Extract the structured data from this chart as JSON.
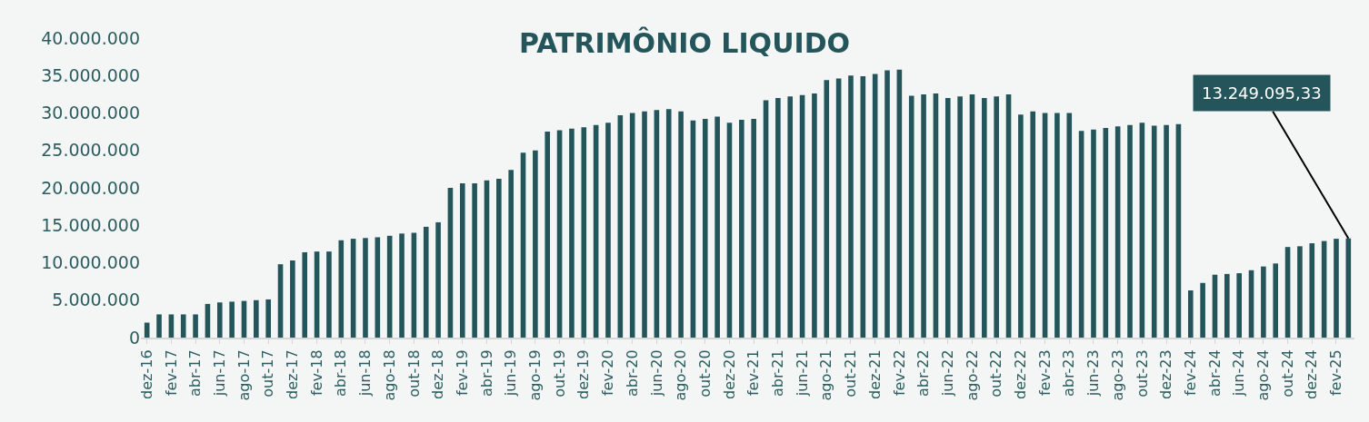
{
  "chart_data": {
    "type": "bar",
    "title": "PATRIMÔNIO LIQUIDO",
    "categories": [
      "dez-16",
      null,
      "fev-17",
      null,
      "abr-17",
      null,
      "jun-17",
      null,
      "ago-17",
      null,
      "out-17",
      null,
      "dez-17",
      null,
      "fev-18",
      null,
      "abr-18",
      null,
      "jun-18",
      null,
      "ago-18",
      null,
      "out-18",
      null,
      "dez-18",
      null,
      "fev-19",
      null,
      "abr-19",
      null,
      "jun-19",
      null,
      "ago-19",
      null,
      "out-19",
      null,
      "dez-19",
      null,
      "fev-20",
      null,
      "abr-20",
      null,
      "jun-20",
      null,
      "ago-20",
      null,
      "out-20",
      null,
      "dez-20",
      null,
      "fev-21",
      null,
      "abr-21",
      null,
      "jun-21",
      null,
      "ago-21",
      null,
      "out-21",
      null,
      "dez-21",
      null,
      "fev-22",
      null,
      "abr-22",
      null,
      "jun-22",
      null,
      "ago-22",
      null,
      "out-22",
      null,
      "dez-22",
      null,
      "fev-23",
      null,
      "abr-23",
      null,
      "jun-23",
      null,
      "ago-23",
      null,
      "out-23",
      null,
      "dez-23",
      null,
      "fev-24",
      null,
      "abr-24",
      null,
      "jun-24",
      null,
      "ago-24",
      null,
      "out-24",
      null,
      "dez-24",
      null,
      "fev-25",
      null
    ],
    "values": [
      2000000,
      3100000,
      3100000,
      3100000,
      3100000,
      4500000,
      4700000,
      4800000,
      4900000,
      5000000,
      5100000,
      9800000,
      10300000,
      11400000,
      11500000,
      11500000,
      13000000,
      13200000,
      13300000,
      13400000,
      13600000,
      13900000,
      14000000,
      14800000,
      15400000,
      20000000,
      20600000,
      20600000,
      21000000,
      21200000,
      22400000,
      24700000,
      25000000,
      27500000,
      27700000,
      27900000,
      28100000,
      28400000,
      28700000,
      29700000,
      30000000,
      30200000,
      30400000,
      30500000,
      30200000,
      29000000,
      29200000,
      29500000,
      28700000,
      29100000,
      29200000,
      31700000,
      32000000,
      32200000,
      32400000,
      32600000,
      34400000,
      34600000,
      35000000,
      34900000,
      35200000,
      35700000,
      35800000,
      32300000,
      32500000,
      32600000,
      32000000,
      32200000,
      32500000,
      32000000,
      32200000,
      32500000,
      29800000,
      30200000,
      30000000,
      30000000,
      30000000,
      27600000,
      27800000,
      28000000,
      28200000,
      28400000,
      28700000,
      28300000,
      28400000,
      28500000,
      6300000,
      7300000,
      8400000,
      8500000,
      8600000,
      9000000,
      9500000,
      9900000,
      12100000,
      12200000,
      12600000,
      12900000,
      13200000,
      13249095.33
    ],
    "color": "#24555a",
    "ylim": [
      0,
      40000000
    ],
    "yticks": [
      {
        "value": 0,
        "label": "0"
      },
      {
        "value": 5000000,
        "label": "5.000.000"
      },
      {
        "value": 10000000,
        "label": "10.000.000"
      },
      {
        "value": 15000000,
        "label": "15.000.000"
      },
      {
        "value": 20000000,
        "label": "20.000.000"
      },
      {
        "value": 25000000,
        "label": "25.000.000"
      },
      {
        "value": 30000000,
        "label": "30.000.000"
      },
      {
        "value": 35000000,
        "label": "35.000.000"
      },
      {
        "value": 40000000,
        "label": "40.000.000"
      }
    ],
    "value_labels": [
      null,
      null,
      null,
      null,
      null,
      null,
      null,
      null,
      null,
      null,
      null,
      null,
      null,
      null,
      null,
      null,
      null,
      null,
      null,
      null,
      null,
      null,
      null,
      null,
      null,
      null,
      null,
      null,
      null,
      null,
      null,
      null,
      null,
      null,
      null,
      null,
      null,
      null,
      null,
      null,
      null,
      null,
      null,
      null,
      null,
      null,
      null,
      null,
      null,
      null,
      null,
      null,
      null,
      null,
      null,
      null,
      null,
      null,
      null,
      null,
      null,
      null,
      null,
      null,
      null,
      null,
      null,
      null,
      null,
      null,
      null,
      null,
      null,
      null,
      null,
      null,
      null,
      null,
      null,
      null,
      null,
      null,
      null,
      null,
      null,
      null,
      null,
      null,
      null,
      null,
      null,
      null,
      null,
      null,
      null,
      null,
      null,
      null,
      null,
      "13.249.095,33"
    ],
    "grid": false
  }
}
